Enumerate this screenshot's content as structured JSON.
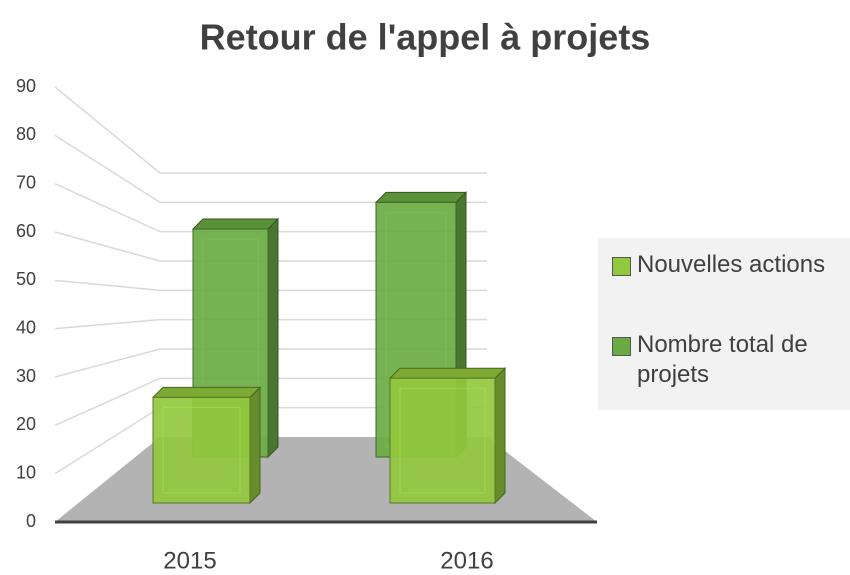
{
  "chart_data": {
    "type": "bar3d",
    "title": "Retour de l'appel à projets",
    "categories": [
      "2015",
      "2016"
    ],
    "series": [
      {
        "name": "Nouvelles actions",
        "color": "#92c83e",
        "values": [
          22,
          26
        ]
      },
      {
        "name": "Nombre total de projets",
        "color": "#6aaa43",
        "values": [
          60,
          67
        ]
      }
    ],
    "ylim": [
      0,
      90
    ],
    "yticks": [
      0,
      10,
      20,
      30,
      40,
      50,
      60,
      70,
      80,
      90
    ],
    "grid": true
  }
}
